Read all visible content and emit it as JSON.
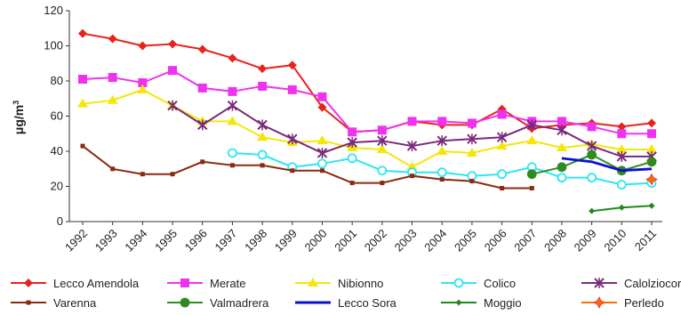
{
  "chart_data": {
    "type": "line",
    "ylabel": "μg/m",
    "ylabel_sup": "3",
    "ylim": [
      0,
      120
    ],
    "yticks": [
      0,
      20,
      40,
      60,
      80,
      100,
      120
    ],
    "xlim": [
      1992,
      2011
    ],
    "categories": [
      "1992",
      "1993",
      "1994",
      "1995",
      "1996",
      "1997",
      "1998",
      "1999",
      "2000",
      "2001",
      "2002",
      "2003",
      "2004",
      "2005",
      "2006",
      "2007",
      "2008",
      "2009",
      "2010",
      "2011"
    ],
    "grid": "none",
    "legend_position": "bottom",
    "series": [
      {
        "name": "Lecco Amendola",
        "color": "#e8231b",
        "marker": "diamond",
        "x": [
          1992,
          1993,
          1994,
          1995,
          1996,
          1997,
          1998,
          1999,
          2000,
          2001,
          2002,
          2003,
          2004,
          2005,
          2006,
          2007,
          2008,
          2009,
          2010,
          2011
        ],
        "y": [
          107,
          104,
          100,
          101,
          98,
          93,
          87,
          89,
          65,
          51,
          52,
          57,
          55,
          55,
          64,
          53,
          55,
          56,
          54,
          56
        ]
      },
      {
        "name": "Merate",
        "color": "#ee33ee",
        "marker": "square",
        "x": [
          1992,
          1993,
          1994,
          1995,
          1996,
          1997,
          1998,
          1999,
          2000,
          2001,
          2002,
          2003,
          2004,
          2005,
          2006,
          2007,
          2008,
          2009,
          2010,
          2011
        ],
        "y": [
          81,
          82,
          79,
          86,
          76,
          74,
          77,
          75,
          71,
          51,
          52,
          57,
          57,
          56,
          61,
          57,
          57,
          54,
          50,
          50
        ]
      },
      {
        "name": "Nibionno",
        "color": "#f5e60a",
        "marker": "triangle",
        "x": [
          1992,
          1993,
          1994,
          1995,
          1996,
          1997,
          1998,
          1999,
          2000,
          2001,
          2002,
          2003,
          2004,
          2005,
          2006,
          2007,
          2008,
          2009,
          2010,
          2011
        ],
        "y": [
          67,
          69,
          75,
          66,
          57,
          57,
          48,
          45,
          46,
          42,
          41,
          31,
          40,
          39,
          43,
          46,
          42,
          44,
          41,
          41
        ]
      },
      {
        "name": "Colico",
        "color": "#2ee6f0",
        "marker": "circle",
        "x": [
          1997,
          1998,
          1999,
          2000,
          2001,
          2002,
          2003,
          2004,
          2005,
          2006,
          2007,
          2008,
          2009,
          2010,
          2011
        ],
        "y": [
          39,
          38,
          31,
          33,
          36,
          29,
          28,
          28,
          26,
          27,
          31,
          25,
          25,
          21,
          22
        ]
      },
      {
        "name": "Calolziocorte",
        "color": "#7a2a7a",
        "marker": "x",
        "x": [
          1995,
          1996,
          1997,
          1998,
          1999,
          2000,
          2001,
          2002,
          2003,
          2004,
          2005,
          2006,
          2007,
          2008,
          2009,
          2010,
          2011
        ],
        "y": [
          66,
          55,
          66,
          55,
          47,
          39,
          45,
          46,
          43,
          46,
          47,
          48,
          55,
          52,
          43,
          37,
          37
        ]
      },
      {
        "name": "Varenna",
        "color": "#8b2a10",
        "marker": "square-small",
        "x": [
          1992,
          1993,
          1994,
          1995,
          1996,
          1997,
          1998,
          1999,
          2000,
          2001,
          2002,
          2003,
          2004,
          2005,
          2006,
          2007
        ],
        "y": [
          43,
          30,
          27,
          27,
          34,
          32,
          32,
          29,
          29,
          22,
          22,
          26,
          24,
          23,
          19,
          19
        ]
      },
      {
        "name": "Valmadrera",
        "color": "#2e8b1f",
        "marker": "circle",
        "x": [
          2007,
          2008,
          2009,
          2010,
          2011
        ],
        "y": [
          27,
          31,
          38,
          29,
          34
        ]
      },
      {
        "name": "Lecco Sora",
        "color": "#1010d0",
        "marker": "none",
        "x": [
          2008,
          2009,
          2010,
          2011
        ],
        "y": [
          36,
          34,
          29,
          30
        ]
      },
      {
        "name": "Moggio",
        "color": "#1e8a1e",
        "marker": "diamond-small",
        "x": [
          2009,
          2010,
          2011
        ],
        "y": [
          6,
          8,
          9
        ]
      },
      {
        "name": "Perledo",
        "color": "#ff6a00",
        "marker": "star",
        "x": [
          2011
        ],
        "y": [
          24
        ]
      }
    ]
  }
}
